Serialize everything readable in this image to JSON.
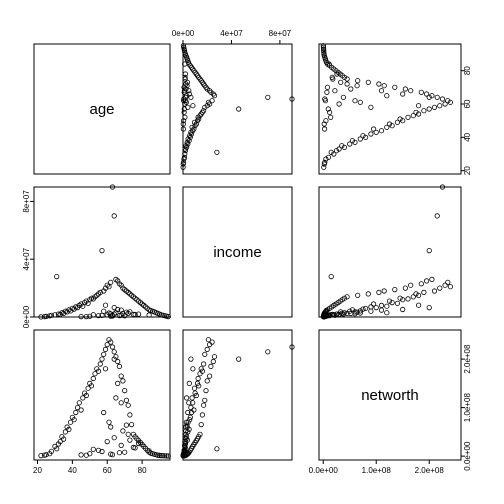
{
  "chart_data": {
    "type": "scatter",
    "variables": [
      "age",
      "income",
      "networth"
    ],
    "ranges": {
      "age": [
        18,
        96
      ],
      "income": [
        0,
        90000000
      ],
      "networth": [
        -8000000,
        260000000
      ]
    },
    "ticks": {
      "age": {
        "values": [
          20,
          40,
          60,
          80
        ],
        "labels": [
          "20",
          "40",
          "60",
          "80"
        ]
      },
      "income": {
        "values": [
          0,
          40000000,
          80000000
        ],
        "labels": [
          "0e+00",
          "4e+07",
          "8e+07"
        ]
      },
      "networth": {
        "values": [
          0,
          100000000,
          200000000
        ],
        "labels": [
          "0.0e+00",
          "1.0e+08",
          "2.0e+08"
        ]
      }
    },
    "points": {
      "age": [
        22,
        24,
        25,
        27,
        28,
        30,
        31,
        32,
        33,
        34,
        35,
        36,
        37,
        38,
        39,
        40,
        41,
        42,
        43,
        44,
        45,
        46,
        47,
        48,
        49,
        50,
        51,
        52,
        53,
        54,
        55,
        56,
        57,
        58,
        59,
        60,
        61,
        62,
        63,
        64,
        65,
        66,
        67,
        68,
        69,
        70,
        71,
        72,
        73,
        74,
        75,
        76,
        77,
        78,
        79,
        80,
        81,
        82,
        83,
        84,
        85,
        86,
        87,
        88,
        89,
        90,
        91,
        92,
        93,
        94,
        95,
        50,
        55,
        60,
        62,
        65,
        68,
        70,
        72,
        75,
        58,
        63,
        66,
        45,
        52,
        61,
        64,
        67,
        73,
        78,
        84,
        48,
        57,
        69,
        71,
        76,
        59,
        62,
        64,
        68
      ],
      "income": [
        50000,
        200000,
        400000,
        800000,
        1200000,
        1500000,
        28000000,
        2000000,
        1800000,
        3000000,
        2500000,
        4000000,
        3500000,
        5000000,
        4200000,
        6000000,
        5500000,
        7000000,
        6500000,
        8000000,
        9000000,
        7500000,
        10000000,
        11000000,
        9500000,
        12000000,
        13000000,
        12500000,
        14000000,
        15000000,
        16000000,
        17000000,
        46000000,
        18000000,
        20000000,
        22000000,
        21000000,
        24000000,
        90000000,
        70000000,
        26000000,
        25000000,
        23000000,
        22000000,
        20000000,
        19000000,
        18000000,
        17000000,
        16000000,
        15000000,
        14000000,
        13000000,
        12000000,
        11000000,
        10000000,
        9000000,
        8000000,
        7000000,
        6000000,
        5000000,
        4500000,
        4000000,
        3500000,
        3000000,
        2500000,
        2000000,
        1500000,
        1200000,
        900000,
        600000,
        300000,
        500000,
        900000,
        1500000,
        2200000,
        3000000,
        1200000,
        800000,
        2500000,
        1800000,
        4000000,
        700000,
        5200000,
        300000,
        1600000,
        2800000,
        6500000,
        1000000,
        3600000,
        2000000,
        1400000,
        250000,
        1100000,
        2400000,
        3300000,
        1700000,
        8200000,
        600000,
        2100000,
        4800000
      ],
      "networth": [
        1000000,
        2000000,
        3000000,
        5000000,
        10000000,
        20000000,
        15000000,
        25000000,
        30000000,
        40000000,
        35000000,
        50000000,
        60000000,
        55000000,
        70000000,
        80000000,
        75000000,
        90000000,
        100000000,
        110000000,
        95000000,
        120000000,
        130000000,
        125000000,
        140000000,
        150000000,
        145000000,
        160000000,
        170000000,
        180000000,
        175000000,
        190000000,
        200000000,
        210000000,
        220000000,
        230000000,
        240000000,
        235000000,
        225000000,
        215000000,
        205000000,
        195000000,
        185000000,
        165000000,
        155000000,
        135000000,
        115000000,
        105000000,
        85000000,
        65000000,
        45000000,
        40000000,
        36000000,
        32000000,
        28000000,
        24000000,
        20000000,
        16000000,
        12000000,
        8000000,
        6000000,
        5000000,
        4000000,
        3000000,
        2000000,
        1500000,
        1000000,
        800000,
        600000,
        400000,
        200000,
        5000000,
        12000000,
        30000000,
        60000000,
        120000000,
        22000000,
        8000000,
        45000000,
        18000000,
        90000000,
        3000000,
        150000000,
        2500000,
        14000000,
        70000000,
        200000000,
        7000000,
        33000000,
        26000000,
        11000000,
        1800000,
        9500000,
        52000000,
        64000000,
        17000000,
        180000000,
        4200000,
        38000000,
        110000000
      ]
    }
  }
}
